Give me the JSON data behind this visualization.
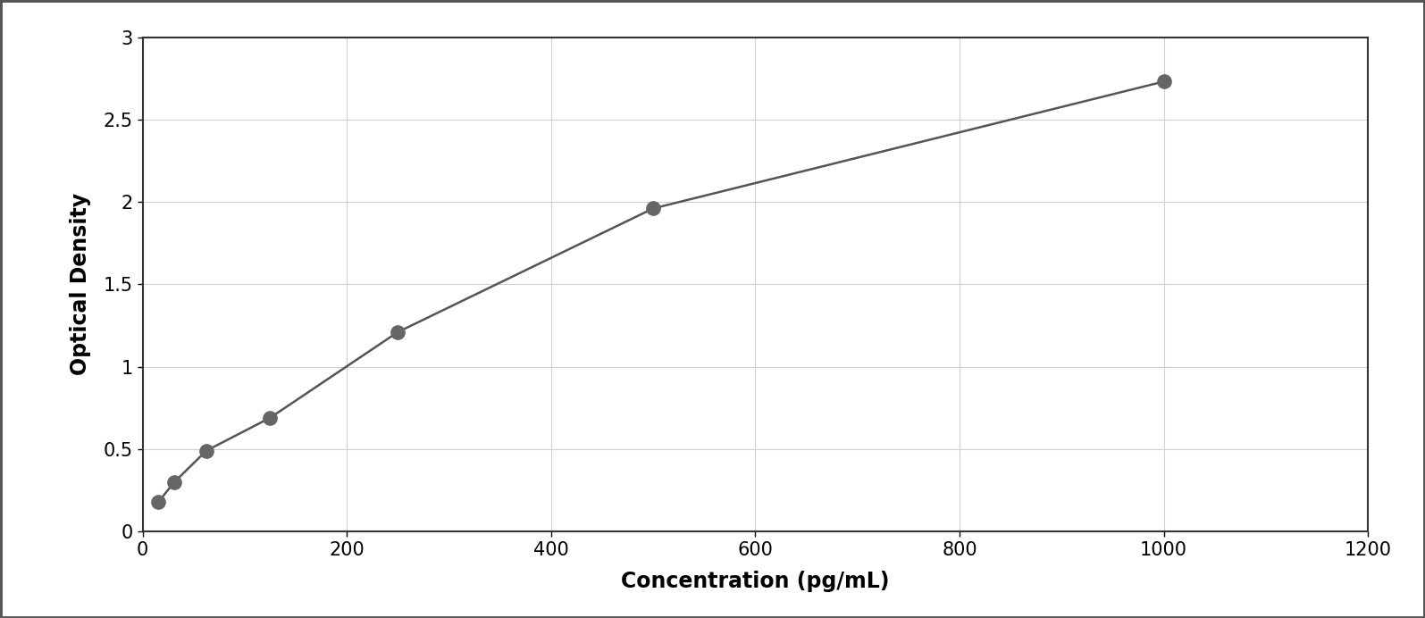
{
  "x_data": [
    15.6,
    31.2,
    62.5,
    125,
    250,
    500,
    1000
  ],
  "y_data": [
    0.18,
    0.3,
    0.49,
    0.69,
    1.21,
    1.96,
    2.73
  ],
  "xlabel": "Concentration (pg/mL)",
  "ylabel": "Optical Density",
  "xlim": [
    0,
    1200
  ],
  "ylim": [
    0,
    3
  ],
  "xticks": [
    0,
    200,
    400,
    600,
    800,
    1000,
    1200
  ],
  "yticks": [
    0,
    0.5,
    1.0,
    1.5,
    2.0,
    2.5,
    3.0
  ],
  "ytick_labels": [
    "0",
    "0.5",
    "1",
    "1.5",
    "2",
    "2.5",
    "3"
  ],
  "marker_color": "#666666",
  "line_color": "#555555",
  "grid_color": "#d0d0d0",
  "background_color": "#ffffff",
  "border_color": "#333333",
  "marker_size": 11,
  "line_width": 1.8,
  "xlabel_fontsize": 17,
  "ylabel_fontsize": 17,
  "tick_fontsize": 15,
  "xlabel_fontweight": "bold",
  "ylabel_fontweight": "bold",
  "figure_border_color": "#555555",
  "figure_border_linewidth": 3.5
}
